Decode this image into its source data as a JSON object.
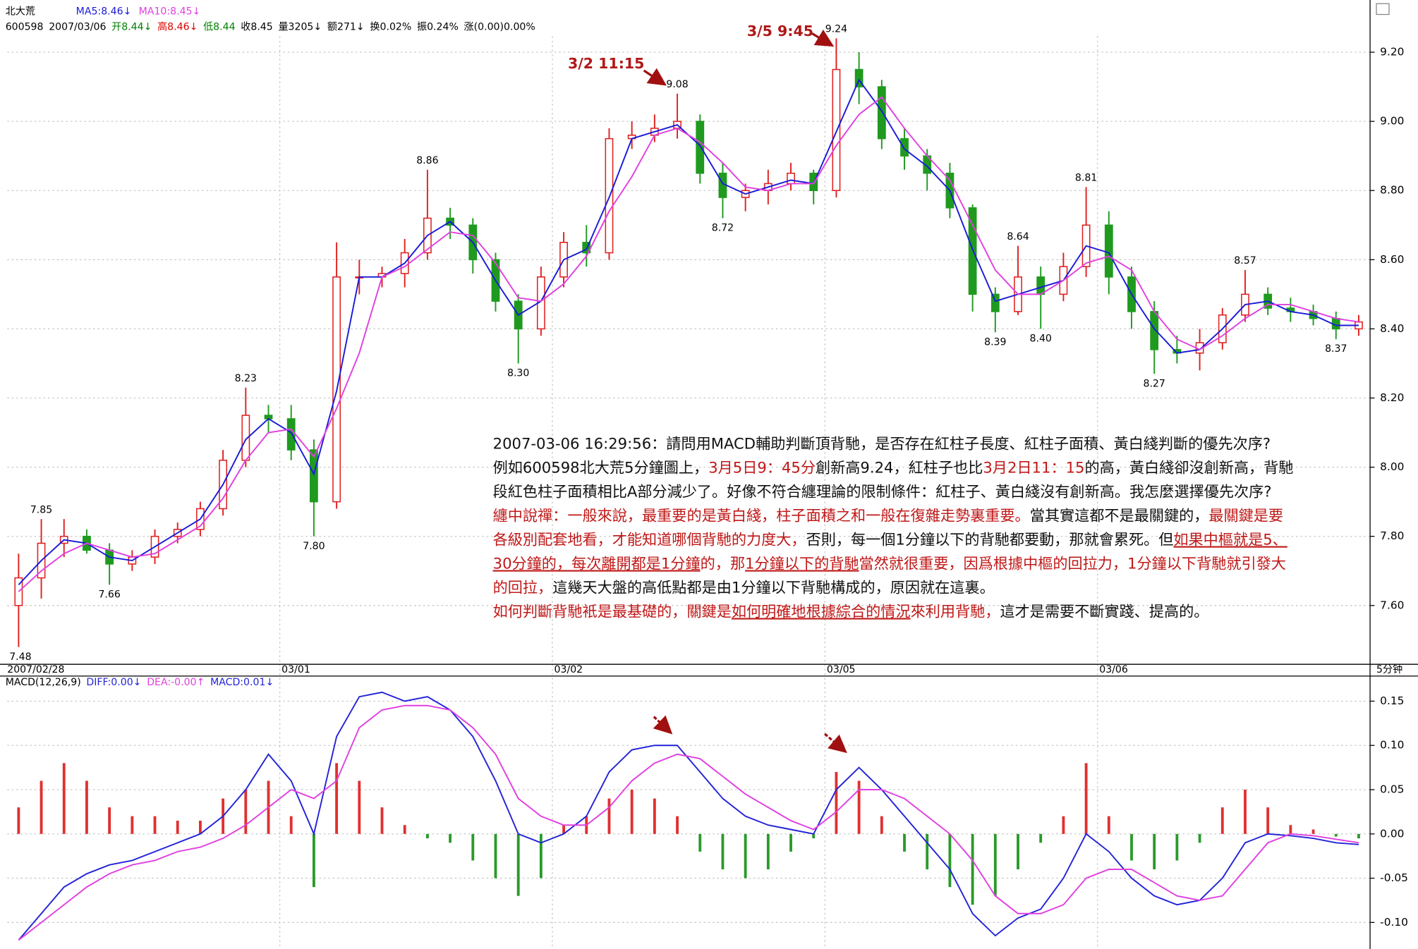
{
  "chart_data": [
    {
      "type": "candlestick",
      "title": "北大荒",
      "info": [
        {
          "text": "600598",
          "color": "#000000"
        },
        {
          "text": "2007/03/06",
          "color": "#000000"
        },
        {
          "text": "开8.44↓",
          "color": "#008000"
        },
        {
          "text": "高8.46↓",
          "color": "#e00000"
        },
        {
          "text": "低8.44",
          "color": "#008000"
        },
        {
          "text": "收8.45",
          "color": "#000000"
        },
        {
          "text": "量3205↓",
          "color": "#000000"
        },
        {
          "text": "额271↓",
          "color": "#000000"
        },
        {
          "text": "换0.02%",
          "color": "#000000"
        },
        {
          "text": "振0.24%",
          "color": "#000000"
        },
        {
          "text": "涨(0.00)0.00%",
          "color": "#000000"
        }
      ],
      "categories": [
        "2007/02/28",
        null,
        null,
        null,
        null,
        null,
        null,
        null,
        null,
        null,
        null,
        null,
        "03/01",
        null,
        null,
        null,
        null,
        null,
        null,
        null,
        null,
        null,
        null,
        null,
        "03/02",
        null,
        null,
        null,
        null,
        null,
        null,
        null,
        null,
        null,
        null,
        null,
        "03/05",
        null,
        null,
        null,
        null,
        null,
        null,
        null,
        null,
        null,
        null,
        null,
        "03/06",
        null,
        null,
        null,
        null,
        null,
        null,
        null,
        null,
        null,
        null,
        null
      ],
      "x_unit": "5分钟",
      "up_color": "#e02020",
      "down_color": "#1f9a1f",
      "open": [
        7.6,
        7.68,
        7.78,
        7.8,
        7.76,
        7.72,
        7.74,
        7.8,
        7.82,
        7.88,
        8.02,
        8.15,
        8.14,
        8.05,
        7.9,
        8.55,
        8.55,
        8.56,
        8.62,
        8.72,
        8.7,
        8.6,
        8.48,
        8.4,
        8.55,
        8.65,
        8.62,
        8.95,
        8.96,
        8.98,
        9.0,
        8.85,
        8.78,
        8.8,
        8.82,
        8.85,
        8.8,
        9.15,
        9.1,
        8.95,
        8.9,
        8.85,
        8.75,
        8.5,
        8.45,
        8.55,
        8.5,
        8.58,
        8.7,
        8.55,
        8.45,
        8.34,
        8.33,
        8.36,
        8.44,
        8.5,
        8.46,
        8.45,
        8.43,
        8.4
      ],
      "high": [
        7.75,
        7.85,
        7.85,
        7.82,
        7.78,
        7.76,
        7.82,
        7.84,
        7.9,
        8.05,
        8.23,
        8.18,
        8.18,
        8.08,
        8.65,
        8.6,
        8.58,
        8.66,
        8.86,
        8.75,
        8.72,
        8.62,
        8.5,
        8.58,
        8.68,
        8.7,
        8.98,
        9.0,
        9.02,
        9.08,
        9.02,
        8.88,
        8.82,
        8.86,
        8.88,
        8.86,
        9.24,
        9.2,
        9.12,
        8.98,
        8.92,
        8.88,
        8.76,
        8.52,
        8.64,
        8.58,
        8.62,
        8.81,
        8.74,
        8.58,
        8.48,
        8.38,
        8.4,
        8.46,
        8.57,
        8.52,
        8.49,
        8.47,
        8.45,
        8.44
      ],
      "low": [
        7.48,
        7.62,
        7.74,
        7.75,
        7.66,
        7.7,
        7.72,
        7.78,
        7.8,
        7.86,
        8.0,
        8.1,
        8.02,
        7.8,
        7.88,
        8.5,
        8.52,
        8.52,
        8.6,
        8.66,
        8.56,
        8.45,
        8.3,
        8.38,
        8.52,
        8.58,
        8.6,
        8.92,
        8.94,
        8.95,
        8.82,
        8.72,
        8.74,
        8.76,
        8.8,
        8.76,
        8.78,
        9.05,
        8.92,
        8.86,
        8.8,
        8.72,
        8.45,
        8.39,
        8.44,
        8.4,
        8.48,
        8.55,
        8.5,
        8.4,
        8.27,
        8.3,
        8.28,
        8.34,
        8.42,
        8.44,
        8.42,
        8.41,
        8.37,
        8.38
      ],
      "close": [
        7.68,
        7.78,
        7.8,
        7.76,
        7.72,
        7.74,
        7.8,
        7.82,
        7.88,
        8.02,
        8.15,
        8.14,
        8.05,
        7.9,
        8.55,
        8.55,
        8.56,
        8.62,
        8.72,
        8.7,
        8.6,
        8.48,
        8.4,
        8.55,
        8.65,
        8.62,
        8.95,
        8.96,
        8.98,
        9.0,
        8.85,
        8.78,
        8.8,
        8.82,
        8.85,
        8.8,
        9.15,
        9.1,
        8.95,
        8.9,
        8.85,
        8.75,
        8.5,
        8.45,
        8.55,
        8.5,
        8.58,
        8.7,
        8.55,
        8.45,
        8.34,
        8.33,
        8.36,
        8.44,
        8.5,
        8.46,
        8.45,
        8.43,
        8.4,
        8.42
      ],
      "high_labels": [
        null,
        "7.85",
        null,
        null,
        null,
        null,
        null,
        null,
        null,
        null,
        "8.23",
        null,
        null,
        null,
        null,
        null,
        null,
        null,
        "8.86",
        null,
        null,
        null,
        null,
        null,
        null,
        null,
        null,
        null,
        null,
        "9.08",
        null,
        null,
        null,
        null,
        null,
        null,
        "9.24",
        null,
        null,
        null,
        null,
        null,
        null,
        null,
        "8.64",
        null,
        null,
        "8.81",
        null,
        null,
        null,
        null,
        null,
        null,
        "8.57",
        null,
        null,
        null,
        null,
        null
      ],
      "low_labels": [
        "7.48",
        null,
        null,
        null,
        "7.66",
        null,
        null,
        null,
        null,
        null,
        null,
        null,
        null,
        "7.80",
        null,
        null,
        null,
        null,
        null,
        null,
        null,
        null,
        "8.30",
        null,
        null,
        null,
        null,
        null,
        null,
        null,
        null,
        "8.72",
        null,
        null,
        null,
        null,
        null,
        null,
        null,
        null,
        null,
        null,
        null,
        "8.39",
        null,
        "8.40",
        null,
        null,
        null,
        null,
        "8.27",
        null,
        null,
        null,
        null,
        null,
        null,
        null,
        "8.37",
        null
      ],
      "series": [
        {
          "name": "MA5:8.46↓",
          "color": "#1a1ad8",
          "values": [
            7.66,
            7.73,
            7.79,
            7.78,
            7.74,
            7.73,
            7.77,
            7.81,
            7.85,
            7.95,
            8.08,
            8.14,
            8.1,
            7.98,
            8.22,
            8.55,
            8.55,
            8.59,
            8.67,
            8.71,
            8.65,
            8.54,
            8.44,
            8.48,
            8.6,
            8.63,
            8.78,
            8.95,
            8.97,
            8.99,
            8.93,
            8.82,
            8.79,
            8.81,
            8.83,
            8.82,
            8.97,
            9.12,
            9.03,
            8.92,
            8.87,
            8.8,
            8.63,
            8.48,
            8.5,
            8.52,
            8.54,
            8.64,
            8.62,
            8.5,
            8.4,
            8.33,
            8.34,
            8.4,
            8.47,
            8.48,
            8.45,
            8.44,
            8.41,
            8.41
          ]
        },
        {
          "name": "MA10:8.45↓",
          "color": "#e040e0",
          "values": [
            7.64,
            7.7,
            7.75,
            7.78,
            7.76,
            7.74,
            7.75,
            7.79,
            7.83,
            7.91,
            8.02,
            8.1,
            8.11,
            8.03,
            8.17,
            8.33,
            8.55,
            8.58,
            8.63,
            8.68,
            8.67,
            8.59,
            8.49,
            8.48,
            8.53,
            8.61,
            8.74,
            8.84,
            8.96,
            8.98,
            8.94,
            8.88,
            8.81,
            8.8,
            8.82,
            8.82,
            8.93,
            9.02,
            9.07,
            8.98,
            8.9,
            8.83,
            8.7,
            8.57,
            8.5,
            8.5,
            8.54,
            8.59,
            8.61,
            8.57,
            8.45,
            8.37,
            8.34,
            8.38,
            8.43,
            8.47,
            8.47,
            8.45,
            8.43,
            8.42
          ]
        }
      ],
      "ylim": [
        7.43,
        9.33
      ],
      "yticks": [
        {
          "value": 7.6,
          "label": "7.60"
        },
        {
          "value": 7.8,
          "label": "7.80"
        },
        {
          "value": 8.0,
          "label": "8.00"
        },
        {
          "value": 8.2,
          "label": "8.20"
        },
        {
          "value": 8.4,
          "label": "8.40"
        },
        {
          "value": 8.6,
          "label": "8.60"
        },
        {
          "value": 8.8,
          "label": "8.80"
        },
        {
          "value": 9.0,
          "label": "9.00"
        },
        {
          "value": 9.2,
          "label": "9.20"
        }
      ],
      "grid": true,
      "annotations": [
        "3/2 11:15",
        "3/5 9:45"
      ]
    },
    {
      "type": "macd",
      "title": "MACD(12,26,9)",
      "series": [
        {
          "name": "DIFF:0.00↓",
          "color": "#2323d8",
          "style": "line",
          "values": [
            -0.12,
            -0.09,
            -0.06,
            -0.045,
            -0.035,
            -0.03,
            -0.02,
            -0.01,
            0.0,
            0.02,
            0.05,
            0.09,
            0.06,
            0.0,
            0.11,
            0.155,
            0.16,
            0.15,
            0.155,
            0.14,
            0.11,
            0.06,
            0.0,
            -0.01,
            0.0,
            0.02,
            0.07,
            0.095,
            0.1,
            0.1,
            0.07,
            0.04,
            0.02,
            0.01,
            0.005,
            0.0,
            0.05,
            0.075,
            0.05,
            0.02,
            -0.01,
            -0.04,
            -0.09,
            -0.115,
            -0.095,
            -0.085,
            -0.05,
            0.0,
            -0.02,
            -0.05,
            -0.07,
            -0.08,
            -0.075,
            -0.05,
            -0.01,
            0.0,
            -0.002,
            -0.005,
            -0.01,
            -0.012
          ]
        },
        {
          "name": "DEA:-0.00↑",
          "color": "#e040e0",
          "style": "line",
          "values": [
            -0.12,
            -0.1,
            -0.08,
            -0.06,
            -0.045,
            -0.035,
            -0.03,
            -0.02,
            -0.015,
            -0.005,
            0.01,
            0.03,
            0.05,
            0.04,
            0.06,
            0.12,
            0.14,
            0.145,
            0.145,
            0.14,
            0.12,
            0.09,
            0.04,
            0.02,
            0.01,
            0.01,
            0.03,
            0.06,
            0.08,
            0.09,
            0.085,
            0.065,
            0.045,
            0.03,
            0.015,
            0.005,
            0.025,
            0.05,
            0.05,
            0.04,
            0.02,
            0.0,
            -0.03,
            -0.07,
            -0.09,
            -0.09,
            -0.08,
            -0.05,
            -0.04,
            -0.04,
            -0.055,
            -0.07,
            -0.075,
            -0.07,
            -0.04,
            -0.01,
            0.0,
            -0.002,
            -0.006,
            -0.01
          ]
        },
        {
          "name": "MACD:0.01↓",
          "color": "#2323d8",
          "style": "bar",
          "positive_color": "#e03030",
          "negative_color": "#2a9a2a",
          "values": [
            0.03,
            0.06,
            0.08,
            0.06,
            0.03,
            0.02,
            0.02,
            0.015,
            0.015,
            0.04,
            0.05,
            0.06,
            0.02,
            -0.06,
            0.08,
            0.06,
            0.03,
            0.01,
            -0.005,
            -0.01,
            -0.03,
            -0.05,
            -0.07,
            -0.05,
            0.01,
            0.02,
            0.04,
            0.05,
            0.04,
            0.02,
            -0.02,
            -0.04,
            -0.05,
            -0.04,
            -0.02,
            -0.005,
            0.07,
            0.06,
            0.02,
            -0.02,
            -0.04,
            -0.06,
            -0.08,
            -0.07,
            -0.04,
            -0.01,
            0.02,
            0.08,
            0.02,
            -0.03,
            -0.04,
            -0.03,
            -0.01,
            0.03,
            0.05,
            0.03,
            0.01,
            0.005,
            -0.003,
            -0.005
          ]
        }
      ],
      "ylim": [
        -0.13,
        0.161
      ],
      "yticks": [
        {
          "value": -0.1,
          "label": "-0.10"
        },
        -0.05,
        {
          "value": 0,
          "label": "0.00"
        },
        0.05,
        {
          "value": 0.1,
          "label": "0.10"
        },
        0.15
      ],
      "grid": true
    }
  ],
  "note": {
    "lines": [
      [
        {
          "text": "2007-03-06 16:29:56：請問用MACD輔助判斷頂背馳，是否存在紅柱子長度、紅柱子面積、黃白綫判斷的優先次序?",
          "style": "black"
        }
      ],
      [
        {
          "text": "例如600598北大荒5分鐘圖上，",
          "style": "black"
        },
        {
          "text": "3月5日9：45分",
          "style": "red"
        },
        {
          "text": "創新高9.24，紅柱子也比",
          "style": "black"
        },
        {
          "text": "3月2日11：15",
          "style": "red"
        },
        {
          "text": "的高，黃白綫卻沒創新高，背馳",
          "style": "black"
        }
      ],
      [
        {
          "text": "段紅色柱子面積相比A部分減少了。好像不符合纏理論的限制條件：紅柱子、黃白綫沒有創新高。我怎麼選擇優先次序?",
          "style": "black"
        }
      ],
      [
        {
          "text": "纏中說禪：一般來說，",
          "style": "red"
        },
        {
          "text": "最重要的是黃白綫，柱子面積之和一般在復雜走勢裏重要。",
          "style": "red"
        },
        {
          "text": "當其實這都不是最關鍵的，",
          "style": "black"
        },
        {
          "text": "最關鍵是要",
          "style": "red"
        }
      ],
      [
        {
          "text": "各級別配套地看，才能知道哪個背馳的力度大，",
          "style": "red"
        },
        {
          "text": "否則，每一個1分鐘以下的背馳都要動，那就會累死。但",
          "style": "black"
        },
        {
          "text": "如果中樞就是5、",
          "style": "red-underline"
        }
      ],
      [
        {
          "text": "30分鐘的，",
          "style": "red-underline"
        },
        {
          "text": "每次離開都是1分鐘",
          "style": "red-underline"
        },
        {
          "text": "的，那",
          "style": "red"
        },
        {
          "text": "1分鐘以下的背馳",
          "style": "red-underline"
        },
        {
          "text": "當然就很重要，因爲根據中樞的回拉力，1分鐘以下背馳就引發大",
          "style": "red"
        }
      ],
      [
        {
          "text": "的回拉，",
          "style": "red"
        },
        {
          "text": "這幾天大盤的高低點都是由1分鐘以下背馳構成的，原因就在這裏。",
          "style": "black"
        }
      ],
      [
        {
          "text": "如何判斷背馳衹是最基礎的，",
          "style": "red"
        },
        {
          "text": "關鍵是",
          "style": "red"
        },
        {
          "text": "如何明確地根據綜合的情況",
          "style": "red-underline"
        },
        {
          "text": "來利用背馳，",
          "style": "red"
        },
        {
          "text": "這才是需要不斷實踐、提高的。",
          "style": "black"
        }
      ]
    ]
  }
}
